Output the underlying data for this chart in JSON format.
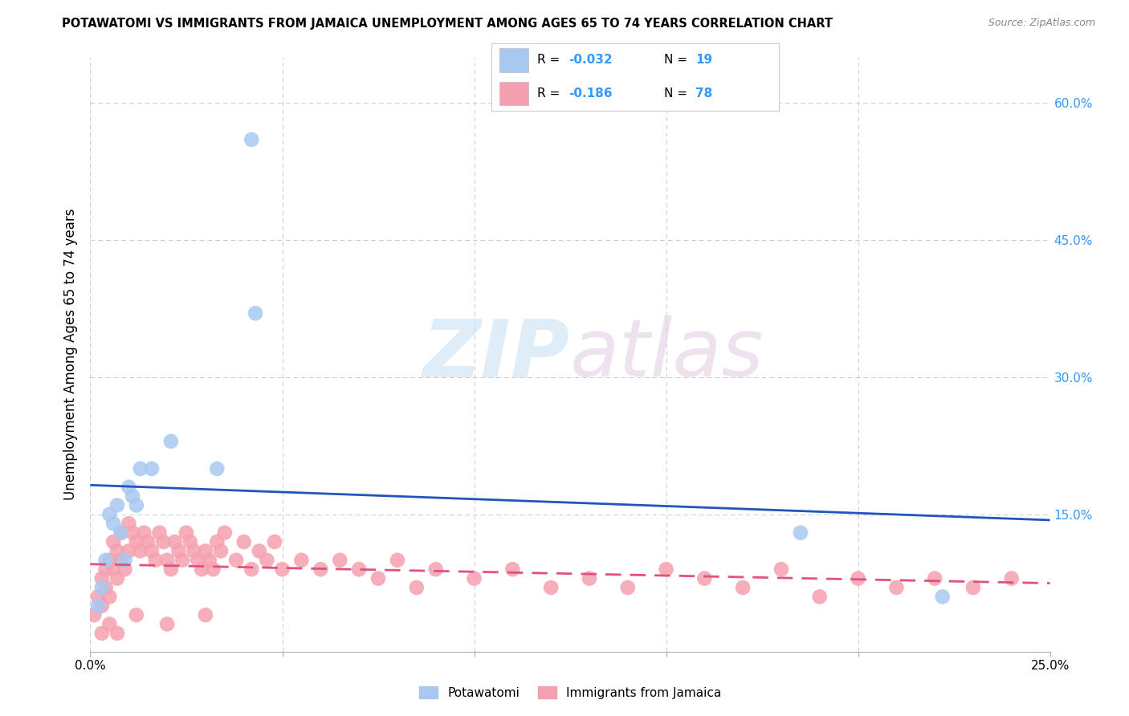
{
  "title": "POTAWATOMI VS IMMIGRANTS FROM JAMAICA UNEMPLOYMENT AMONG AGES 65 TO 74 YEARS CORRELATION CHART",
  "source": "Source: ZipAtlas.com",
  "ylabel": "Unemployment Among Ages 65 to 74 years",
  "xmin": 0.0,
  "xmax": 0.25,
  "ymin": 0.0,
  "ymax": 0.65,
  "legend_r1": "-0.032",
  "legend_n1": "19",
  "legend_r2": "-0.186",
  "legend_n2": "78",
  "color_potawatomi": "#a8c8f0",
  "color_jamaica": "#f5a0b0",
  "color_line1": "#2255bb",
  "color_line2": "#e05080",
  "color_grid": "#cccccc",
  "color_right_axis": "#3399ff",
  "potawatomi_x": [
    0.002,
    0.003,
    0.004,
    0.005,
    0.006,
    0.007,
    0.008,
    0.009,
    0.01,
    0.011,
    0.012,
    0.013,
    0.016,
    0.021,
    0.033,
    0.042,
    0.043,
    0.185,
    0.222
  ],
  "potawatomi_y": [
    0.05,
    0.07,
    0.1,
    0.15,
    0.14,
    0.16,
    0.13,
    0.1,
    0.18,
    0.17,
    0.16,
    0.2,
    0.2,
    0.23,
    0.2,
    0.56,
    0.37,
    0.13,
    0.06
  ],
  "jamaica_x": [
    0.001,
    0.002,
    0.003,
    0.003,
    0.004,
    0.004,
    0.005,
    0.005,
    0.006,
    0.006,
    0.007,
    0.007,
    0.008,
    0.008,
    0.009,
    0.01,
    0.01,
    0.011,
    0.012,
    0.013,
    0.014,
    0.015,
    0.016,
    0.017,
    0.018,
    0.019,
    0.02,
    0.021,
    0.022,
    0.023,
    0.024,
    0.025,
    0.026,
    0.027,
    0.028,
    0.029,
    0.03,
    0.031,
    0.032,
    0.033,
    0.034,
    0.035,
    0.038,
    0.04,
    0.042,
    0.044,
    0.046,
    0.048,
    0.05,
    0.055,
    0.06,
    0.065,
    0.07,
    0.075,
    0.08,
    0.085,
    0.09,
    0.1,
    0.11,
    0.12,
    0.13,
    0.14,
    0.15,
    0.16,
    0.17,
    0.18,
    0.19,
    0.2,
    0.21,
    0.22,
    0.23,
    0.24,
    0.003,
    0.005,
    0.007,
    0.012,
    0.02,
    0.03
  ],
  "jamaica_y": [
    0.04,
    0.06,
    0.05,
    0.08,
    0.07,
    0.09,
    0.06,
    0.1,
    0.09,
    0.12,
    0.08,
    0.11,
    0.1,
    0.13,
    0.09,
    0.11,
    0.14,
    0.13,
    0.12,
    0.11,
    0.13,
    0.12,
    0.11,
    0.1,
    0.13,
    0.12,
    0.1,
    0.09,
    0.12,
    0.11,
    0.1,
    0.13,
    0.12,
    0.11,
    0.1,
    0.09,
    0.11,
    0.1,
    0.09,
    0.12,
    0.11,
    0.13,
    0.1,
    0.12,
    0.09,
    0.11,
    0.1,
    0.12,
    0.09,
    0.1,
    0.09,
    0.1,
    0.09,
    0.08,
    0.1,
    0.07,
    0.09,
    0.08,
    0.09,
    0.07,
    0.08,
    0.07,
    0.09,
    0.08,
    0.07,
    0.09,
    0.06,
    0.08,
    0.07,
    0.08,
    0.07,
    0.08,
    0.02,
    0.03,
    0.02,
    0.04,
    0.03,
    0.04
  ]
}
